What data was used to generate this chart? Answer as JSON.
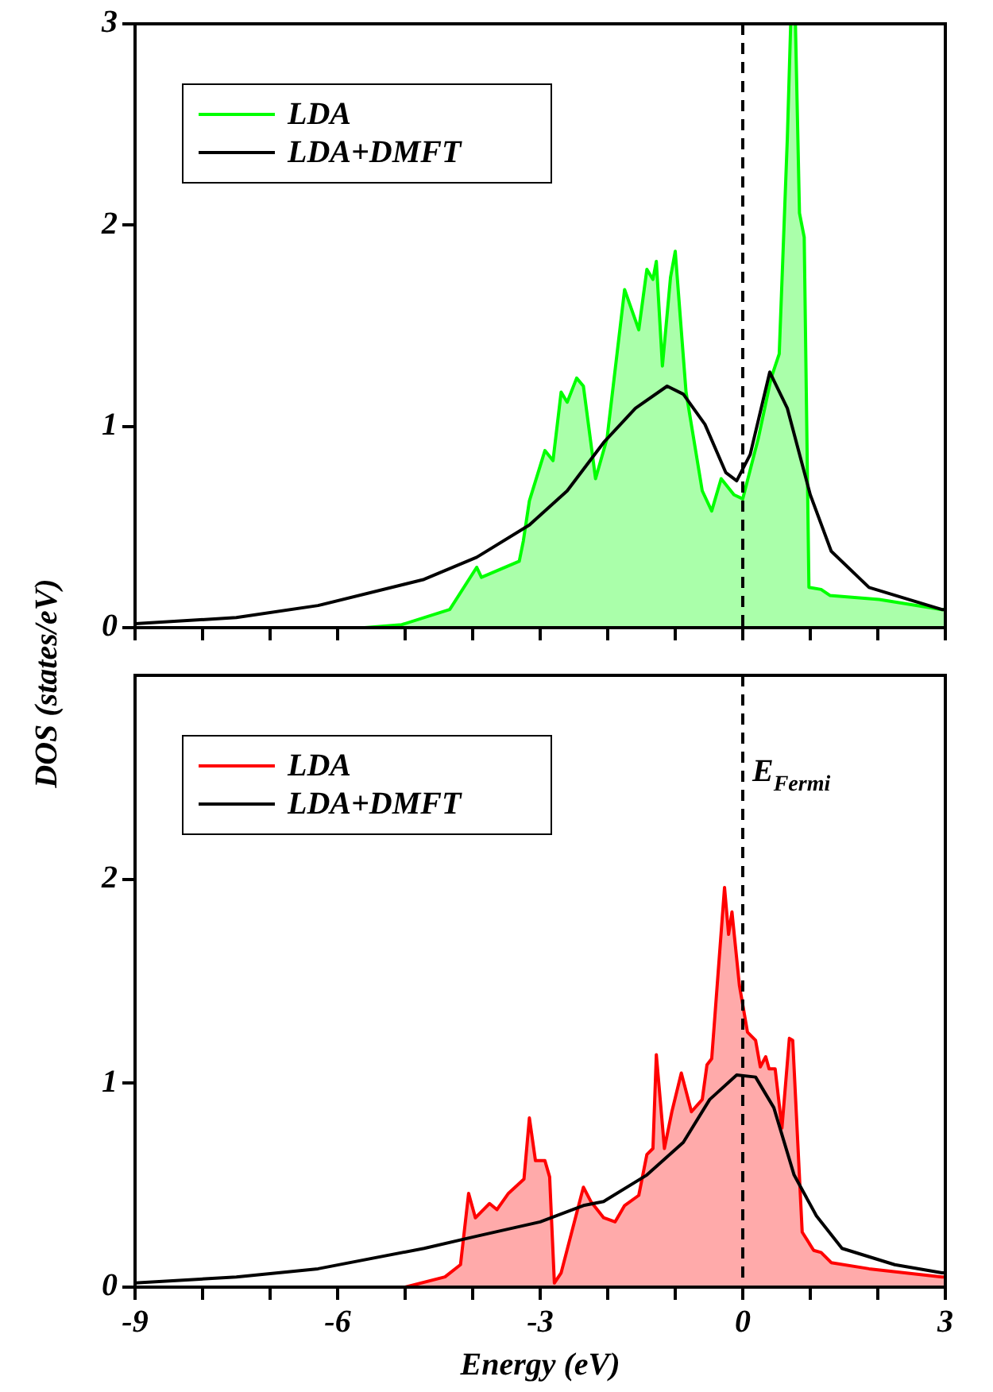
{
  "chart_data": [
    {
      "type": "line",
      "ylabel": "DOS (states/eV)",
      "xlim": [
        -9,
        3
      ],
      "ylim": [
        0,
        3
      ],
      "xticks": [
        {
          "value": -9,
          "label": null
        },
        {
          "value": -8,
          "label": null
        },
        {
          "value": -7,
          "label": null
        },
        {
          "value": -6,
          "label": null
        },
        {
          "value": -5,
          "label": null
        },
        {
          "value": -4,
          "label": null
        },
        {
          "value": -3,
          "label": null
        },
        {
          "value": -2,
          "label": null
        },
        {
          "value": -1,
          "label": null
        },
        {
          "value": 0,
          "label": null
        },
        {
          "value": 1,
          "label": null
        },
        {
          "value": 2,
          "label": null
        },
        {
          "value": 3,
          "label": null
        }
      ],
      "yticks": [
        0,
        1,
        2,
        3
      ],
      "tick_labels": "y",
      "legend": "top left",
      "marker": "none",
      "ref_lines": [
        {
          "axis": "x",
          "value": 0,
          "line_style": "dashed",
          "color": "#000000"
        }
      ],
      "series": [
        {
          "name": "LDA",
          "type": "area",
          "color": "#00ff00",
          "x": [
            -5.6,
            -5.05,
            -4.34,
            -3.94,
            -3.87,
            -3.31,
            -3.25,
            -3.16,
            -2.93,
            -2.81,
            -2.69,
            -2.6,
            -2.46,
            -2.36,
            -2.18,
            -2.01,
            -1.75,
            -1.54,
            -1.42,
            -1.33,
            -1.28,
            -1.19,
            -1.07,
            -1.0,
            -0.84,
            -0.6,
            -0.46,
            -0.32,
            -0.13,
            0.0,
            0.23,
            0.42,
            0.54,
            0.66,
            0.71,
            0.78,
            0.84,
            0.91,
            0.98,
            1.16,
            1.29,
            2.02,
            2.95,
            3.0
          ],
          "values": [
            0,
            0.015,
            0.09,
            0.3,
            0.25,
            0.33,
            0.43,
            0.63,
            0.88,
            0.83,
            1.17,
            1.12,
            1.24,
            1.2,
            0.74,
            0.94,
            1.68,
            1.48,
            1.78,
            1.73,
            1.82,
            1.3,
            1.74,
            1.87,
            1.17,
            0.68,
            0.58,
            0.74,
            0.66,
            0.64,
            0.94,
            1.24,
            1.36,
            2.43,
            3,
            3,
            2.06,
            1.94,
            0.2,
            0.19,
            0.16,
            0.14,
            0.09,
            0.09
          ]
        },
        {
          "name": "LDA+DMFT",
          "type": "line",
          "color": "#000000",
          "x": [
            -9,
            -7.5,
            -6.29,
            -4.72,
            -3.94,
            -3.16,
            -2.6,
            -2.06,
            -1.59,
            -1.12,
            -0.88,
            -0.56,
            -0.25,
            -0.09,
            0.11,
            0.4,
            0.66,
            1.0,
            1.31,
            1.87,
            2.95,
            3.0
          ],
          "values": [
            0.02,
            0.05,
            0.11,
            0.24,
            0.35,
            0.51,
            0.68,
            0.92,
            1.09,
            1.2,
            1.16,
            1.01,
            0.77,
            0.73,
            0.86,
            1.27,
            1.09,
            0.66,
            0.38,
            0.2,
            0.09,
            0.09
          ]
        }
      ]
    },
    {
      "type": "line",
      "xlabel": "Energy (eV)",
      "xlim": [
        -9,
        3
      ],
      "ylim": [
        0,
        3
      ],
      "xticks": [
        -9,
        {
          "value": -8,
          "label": null
        },
        {
          "value": -7,
          "label": null
        },
        -6,
        {
          "value": -5,
          "label": null
        },
        {
          "value": -4,
          "label": null
        },
        -3,
        {
          "value": -2,
          "label": null
        },
        {
          "value": -1,
          "label": null
        },
        0,
        {
          "value": 1,
          "label": null
        },
        {
          "value": 2,
          "label": null
        },
        3
      ],
      "yticks": [
        0,
        1,
        2
      ],
      "legend": "top left",
      "marker": "none",
      "ref_lines": [
        {
          "axis": "x",
          "value": 0,
          "line_style": "dashed",
          "color": "#000000"
        }
      ],
      "annotations": [
        {
          "text": "E$_{Fermi}$",
          "x": 0,
          "y": 2.48
        }
      ],
      "series": [
        {
          "name": "LDA",
          "type": "area",
          "color": "#ff0000",
          "x": [
            -5.6,
            -5.0,
            -4.41,
            -4.18,
            -4.06,
            -3.96,
            -3.75,
            -3.64,
            -3.47,
            -3.24,
            -3.16,
            -3.07,
            -2.93,
            -2.86,
            -2.79,
            -2.69,
            -2.36,
            -2.25,
            -2.06,
            -1.89,
            -1.75,
            -1.54,
            -1.42,
            -1.33,
            -1.28,
            -1.16,
            -1.05,
            -0.91,
            -0.76,
            -0.6,
            -0.53,
            -0.46,
            -0.27,
            -0.21,
            -0.16,
            -0.05,
            0.07,
            0.19,
            0.26,
            0.34,
            0.39,
            0.48,
            0.58,
            0.69,
            0.74,
            0.88,
            1.05,
            1.16,
            1.31,
            1.87,
            2.95,
            3.0
          ],
          "values": [
            0,
            0,
            0.05,
            0.11,
            0.46,
            0.34,
            0.41,
            0.38,
            0.46,
            0.53,
            0.83,
            0.62,
            0.62,
            0.54,
            0.02,
            0.07,
            0.49,
            0.42,
            0.34,
            0.32,
            0.4,
            0.45,
            0.65,
            0.68,
            1.14,
            0.68,
            0.86,
            1.05,
            0.86,
            0.92,
            1.09,
            1.12,
            1.96,
            1.73,
            1.84,
            1.48,
            1.25,
            1.21,
            1.08,
            1.13,
            1.07,
            1.07,
            0.78,
            1.22,
            1.21,
            0.27,
            0.18,
            0.17,
            0.12,
            0.09,
            0.05,
            0.05
          ]
        },
        {
          "name": "LDA+DMFT",
          "type": "line",
          "color": "#000000",
          "x": [
            -9,
            -7.5,
            -6.29,
            -4.72,
            -3.94,
            -3.0,
            -2.36,
            -2.06,
            -1.42,
            -0.88,
            -0.49,
            -0.09,
            0.19,
            0.46,
            0.76,
            1.09,
            1.47,
            2.25,
            2.95,
            3.0
          ],
          "values": [
            0.02,
            0.05,
            0.09,
            0.19,
            0.25,
            0.32,
            0.4,
            0.42,
            0.55,
            0.71,
            0.92,
            1.04,
            1.03,
            0.88,
            0.55,
            0.35,
            0.19,
            0.11,
            0.07,
            0.07
          ]
        }
      ]
    }
  ]
}
